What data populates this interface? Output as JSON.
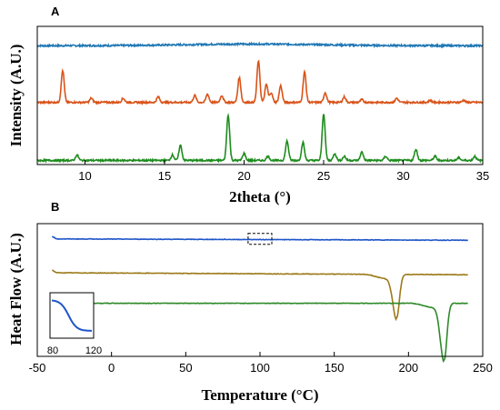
{
  "chart_data": [
    {
      "panel_label": "A",
      "type": "line",
      "xlabel": "2theta (°)",
      "ylabel": "Intensity (A.U.)",
      "xlim": [
        7,
        35
      ],
      "xticks": [
        10,
        15,
        20,
        25,
        30,
        35
      ],
      "y_ticks_shown": false,
      "grid": false,
      "series": [
        {
          "color": "#1f77b4",
          "baseline": 0.86,
          "peaks": []
        },
        {
          "color": "#d95319",
          "baseline": 0.45,
          "peaks": [
            [
              8.6,
              0.23
            ],
            [
              10.4,
              0.03
            ],
            [
              12.4,
              0.03
            ],
            [
              14.6,
              0.04
            ],
            [
              16.9,
              0.05
            ],
            [
              17.7,
              0.06
            ],
            [
              18.6,
              0.05
            ],
            [
              19.7,
              0.18
            ],
            [
              20.9,
              0.3
            ],
            [
              21.4,
              0.13
            ],
            [
              21.7,
              0.07
            ],
            [
              22.3,
              0.12
            ],
            [
              23.8,
              0.22
            ],
            [
              25.1,
              0.07
            ],
            [
              26.3,
              0.04
            ],
            [
              27.4,
              0.02
            ],
            [
              29.6,
              0.03
            ],
            [
              31.7,
              0.015
            ],
            [
              33.8,
              0.015
            ]
          ]
        },
        {
          "color": "#1e8c1e",
          "baseline": 0.03,
          "peaks": [
            [
              9.5,
              0.04
            ],
            [
              15.5,
              0.04
            ],
            [
              16.0,
              0.11
            ],
            [
              19.0,
              0.33
            ],
            [
              20.0,
              0.05
            ],
            [
              21.5,
              0.03
            ],
            [
              22.7,
              0.14
            ],
            [
              23.7,
              0.13
            ],
            [
              25.0,
              0.34
            ],
            [
              25.7,
              0.05
            ],
            [
              26.3,
              0.03
            ],
            [
              27.4,
              0.06
            ],
            [
              28.9,
              0.03
            ],
            [
              30.8,
              0.08
            ],
            [
              32.0,
              0.03
            ],
            [
              33.5,
              0.02
            ],
            [
              34.5,
              0.03
            ]
          ]
        }
      ]
    },
    {
      "panel_label": "B",
      "type": "line",
      "xlabel": "Temperature (°C)",
      "ylabel": "Heat Flow (A.U.)",
      "xlim": [
        -50,
        250
      ],
      "xticks": [
        -50,
        0,
        50,
        100,
        150,
        200,
        250
      ],
      "y_ticks_shown": false,
      "grid": false,
      "series": [
        {
          "color": "#1f55c8",
          "x_range": [
            -40,
            240
          ],
          "start_y": 0.885,
          "end_y": 0.875,
          "dip": null
        },
        {
          "color": "#9c7a1a",
          "x_range": [
            -40,
            240
          ],
          "start_y": 0.63,
          "end_y": 0.615,
          "dip": {
            "x": 192,
            "depth": 0.33
          }
        },
        {
          "color": "#2f8a2a",
          "x_range": [
            -40,
            240
          ],
          "start_y": 0.4,
          "end_y": 0.4,
          "dip": {
            "x": 224,
            "depth": 0.43
          }
        }
      ],
      "zoom_box": {
        "x_range": [
          92,
          108
        ]
      },
      "inset": {
        "tick_labels": [
          "80",
          "120"
        ]
      }
    }
  ]
}
